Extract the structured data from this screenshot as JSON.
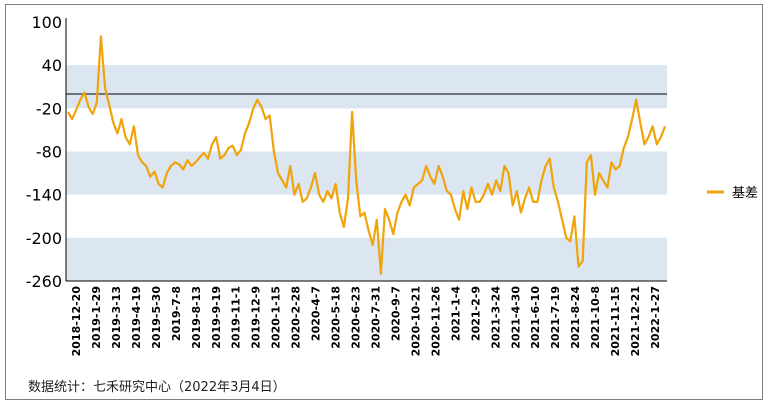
{
  "chart_data": {
    "type": "line",
    "title": "",
    "xlabel": "",
    "ylabel": "",
    "ylim": [
      -260,
      100
    ],
    "y_ticks": [
      100,
      40,
      -20,
      -80,
      -140,
      -200,
      -260
    ],
    "band_ranges": [
      [
        -20,
        40
      ],
      [
        -140,
        -80
      ],
      [
        -260,
        -200
      ]
    ],
    "band_color": "#dce6f1",
    "reference_line": 0,
    "legend_position": "right",
    "x_tick_labels": [
      "2018-12-20",
      "2019-1-29",
      "2019-3-13",
      "2019-4-19",
      "2019-5-30",
      "2019-7-8",
      "2019-8-13",
      "2019-9-19",
      "2019-11-1",
      "2019-12-9",
      "2020-1-15",
      "2020-2-28",
      "2020-4-7",
      "2020-5-18",
      "2020-6-23",
      "2020-7-31",
      "2020-9-7",
      "2020-10-21",
      "2020-11-26",
      "2021-1-4",
      "2021-2-9",
      "2021-3-24",
      "2021-4-30",
      "2021-6-10",
      "2021-7-19",
      "2021-8-24",
      "2021-10-8",
      "2021-11-15",
      "2021-12-21",
      "2022-1-27"
    ],
    "series": [
      {
        "name": "基差",
        "color": "#f0a30a",
        "values": [
          -25,
          -35,
          -22,
          -8,
          2,
          -18,
          -28,
          -12,
          80,
          8,
          -15,
          -40,
          -55,
          -35,
          -60,
          -70,
          -45,
          -85,
          -95,
          -100,
          -115,
          -108,
          -125,
          -130,
          -110,
          -100,
          -95,
          -98,
          -105,
          -92,
          -100,
          -95,
          -88,
          -82,
          -90,
          -70,
          -60,
          -90,
          -85,
          -75,
          -72,
          -85,
          -78,
          -55,
          -40,
          -20,
          -8,
          -18,
          -35,
          -30,
          -80,
          -110,
          -120,
          -130,
          -100,
          -140,
          -125,
          -150,
          -145,
          -130,
          -110,
          -140,
          -150,
          -135,
          -145,
          -125,
          -165,
          -185,
          -145,
          -25,
          -120,
          -170,
          -165,
          -190,
          -210,
          -175,
          -250,
          -160,
          -175,
          -195,
          -165,
          -150,
          -140,
          -155,
          -130,
          -125,
          -120,
          -100,
          -115,
          -125,
          -100,
          -115,
          -135,
          -140,
          -160,
          -175,
          -135,
          -160,
          -130,
          -150,
          -150,
          -140,
          -125,
          -140,
          -120,
          -135,
          -100,
          -110,
          -155,
          -135,
          -165,
          -145,
          -130,
          -150,
          -150,
          -120,
          -100,
          -90,
          -130,
          -150,
          -175,
          -200,
          -205,
          -170,
          -240,
          -232,
          -95,
          -85,
          -140,
          -110,
          -120,
          -130,
          -95,
          -105,
          -100,
          -75,
          -60,
          -35,
          -8,
          -40,
          -70,
          -60,
          -45,
          -70,
          -60,
          -45
        ]
      }
    ]
  },
  "legend": {
    "label": "基差"
  },
  "source_note": "数据统计：七禾研究中心（2022年3月4日）"
}
